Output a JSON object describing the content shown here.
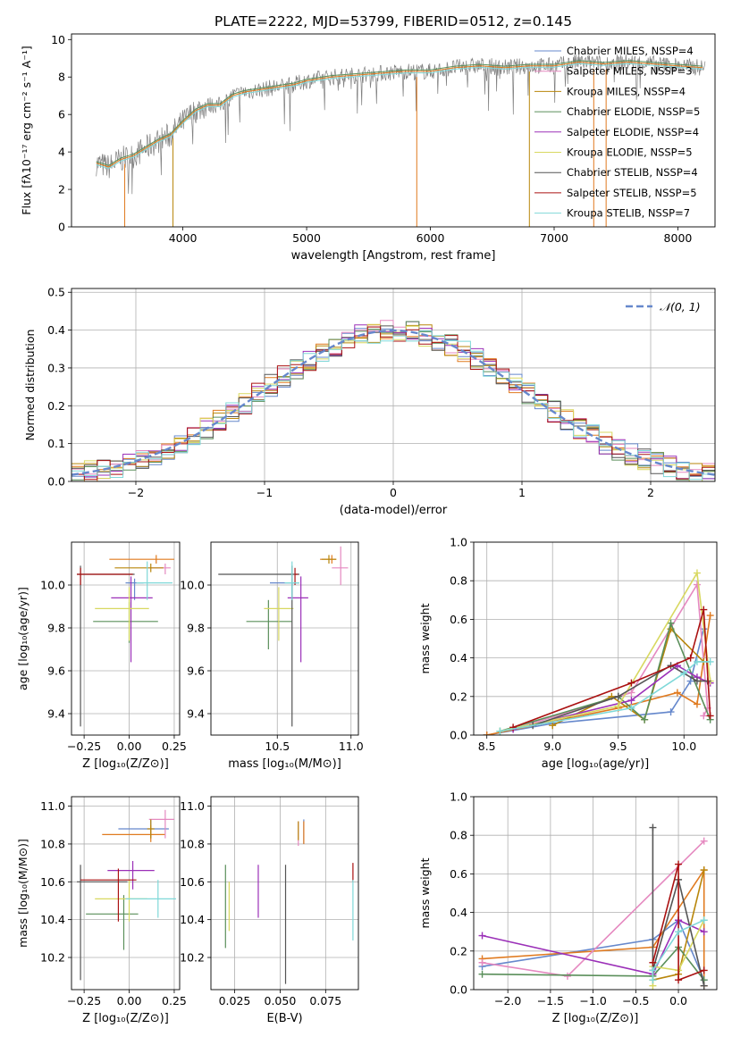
{
  "title": "PLATE=2222, MJD=53799, FIBERID=0512, z=0.145",
  "colors": [
    "#6688cc",
    "#e07a1f",
    "#e589c0",
    "#b8860b",
    "#5a8f5a",
    "#9b30b8",
    "#d8d860",
    "#555555",
    "#aa1111",
    "#7fd8d8"
  ],
  "chart_data": [
    {
      "id": "spectrum",
      "type": "line",
      "xlabel": "wavelength [Angstrom, rest frame]",
      "ylabel": "Flux [fλ10⁻¹⁷ erg cm⁻² s⁻¹ A⁻¹]",
      "xlim": [
        3100,
        8300
      ],
      "ylim": [
        0,
        10.3
      ],
      "xticks": [
        "4000",
        "5000",
        "6000",
        "7000",
        "8000"
      ],
      "yticks": [
        "0",
        "2",
        "4",
        "6",
        "8",
        "10"
      ],
      "legend": [
        "Chabrier MILES, N_SSP=4",
        "Salpeter MILES, N_SSP=3",
        "Kroupa MILES, N_SSP=4",
        "Chabrier ELODIE, N_SSP=5",
        "Salpeter ELODIE, N_SSP=4",
        "Kroupa ELODIE, N_SSP=5",
        "Chabrier STELIB, N_SSP=4",
        "Salpeter STELIB, N_SSP=5",
        "Kroupa STELIB, N_SSP=7"
      ],
      "legend_colors": [
        "#6688cc",
        "#e589c0",
        "#b8860b",
        "#5a8f5a",
        "#9b30b8",
        "#d8d860",
        "#555555",
        "#aa1111",
        "#7fd8d8"
      ],
      "legend_placement": "upper right",
      "continuum": {
        "x": [
          3300,
          3400,
          3500,
          3600,
          3700,
          3800,
          3900,
          4000,
          4100,
          4200,
          4300,
          4400,
          4500,
          4600,
          4700,
          4800,
          4900,
          5000,
          5200,
          5400,
          5600,
          5800,
          6000,
          6200,
          6400,
          6600,
          6800,
          7000,
          7200,
          7400,
          7600,
          7800,
          8000,
          8200
        ],
        "y": [
          3.4,
          3.2,
          3.6,
          3.8,
          4.2,
          4.6,
          4.9,
          5.6,
          6.2,
          6.5,
          6.5,
          7.0,
          7.2,
          7.3,
          7.4,
          7.5,
          7.6,
          7.8,
          8.0,
          8.1,
          8.2,
          8.3,
          8.3,
          8.5,
          8.6,
          8.5,
          8.6,
          8.6,
          8.8,
          8.7,
          8.8,
          8.7,
          8.6,
          8.5
        ]
      },
      "grid": false
    },
    {
      "id": "residuals",
      "type": "histogram",
      "xlabel": "(data-model)/error",
      "ylabel": "Normed distribution",
      "xlim": [
        -2.5,
        2.5
      ],
      "ylim": [
        0,
        0.51
      ],
      "xticks": [
        "−2",
        "−1",
        "0",
        "1",
        "2"
      ],
      "yticks": [
        "0.0",
        "0.1",
        "0.2",
        "0.3",
        "0.4",
        "0.5"
      ],
      "bin_width": 0.1,
      "legend": "𝒩(0, 1)",
      "legend_placement": "upper right",
      "curve": "normal pdf, mean 0, sigma 1",
      "grid": true
    },
    {
      "id": "age-vs-Z",
      "type": "errorbar",
      "xlabel": "Z [log₁₀(Z/Z⊙)]",
      "ylabel": "age  [log₁₀(age/yr)]",
      "xlim": [
        -0.32,
        0.28
      ],
      "ylim": [
        9.3,
        10.2
      ],
      "xticks": [
        "−0.25",
        "0.00",
        "0.25"
      ],
      "yticks": [
        "9.4",
        "9.6",
        "9.8",
        "10.0"
      ],
      "points": [
        {
          "x": 0.03,
          "y": 10.01,
          "xerr": [
            0.05,
            0.05
          ],
          "yerr": [
            0.08,
            0.02
          ],
          "c": 0
        },
        {
          "x": 0.15,
          "y": 10.12,
          "xerr": [
            0.26,
            0.1
          ],
          "yerr": [
            0.02,
            0.02
          ],
          "c": 1
        },
        {
          "x": 0.2,
          "y": 10.08,
          "xerr": [
            0.09,
            0.03
          ],
          "yerr": [
            0.03,
            0.02
          ],
          "c": 2
        },
        {
          "x": 0.12,
          "y": 10.08,
          "xerr": [
            0.2,
            0.07
          ],
          "yerr": [
            0.02,
            0.02
          ],
          "c": 3
        },
        {
          "x": 0.0,
          "y": 9.83,
          "xerr": [
            0.2,
            0.16
          ],
          "yerr": [
            0.1,
            0.09
          ],
          "c": 4
        },
        {
          "x": 0.01,
          "y": 9.94,
          "xerr": [
            0.11,
            0.12
          ],
          "yerr": [
            0.3,
            0.1
          ],
          "c": 5
        },
        {
          "x": 0.0,
          "y": 9.89,
          "xerr": [
            0.19,
            0.11
          ],
          "yerr": [
            0.15,
            0.1
          ],
          "c": 6
        },
        {
          "x": -0.27,
          "y": 10.05,
          "xerr": [
            0.02,
            0.3
          ],
          "yerr": [
            0.71,
            0.04
          ],
          "c": 7
        },
        {
          "x": -0.27,
          "y": 10.05,
          "xerr": [
            0.02,
            0.29
          ],
          "yerr": [
            0.05,
            0.03
          ],
          "c": 8
        },
        {
          "x": 0.1,
          "y": 10.01,
          "xerr": [
            0.06,
            0.14
          ],
          "yerr": [
            0.08,
            0.1
          ],
          "c": 9
        }
      ],
      "grid": true
    },
    {
      "id": "age-vs-mass",
      "type": "errorbar",
      "xlabel": "mass [log₁₀(M/M⊙)]",
      "ylabel": "",
      "xlim": [
        10.05,
        11.05
      ],
      "ylim": [
        9.3,
        10.2
      ],
      "xticks": [
        "10.5",
        "11.0"
      ],
      "yticks": [
        "9.4",
        "9.6",
        "9.8",
        "10.0"
      ],
      "points": [
        {
          "x": 10.6,
          "y": 10.01,
          "xerr": [
            0.15,
            0.05
          ],
          "yerr": [
            0.08,
            0.02
          ],
          "c": 0
        },
        {
          "x": 10.87,
          "y": 10.12,
          "xerr": [
            0.08,
            0.03
          ],
          "yerr": [
            0.02,
            0.02
          ],
          "c": 1
        },
        {
          "x": 10.93,
          "y": 10.08,
          "xerr": [
            0.06,
            0.05
          ],
          "yerr": [
            0.08,
            0.1
          ],
          "c": 2
        },
        {
          "x": 10.85,
          "y": 10.12,
          "xerr": [
            0.05,
            0.05
          ],
          "yerr": [
            0.02,
            0.02
          ],
          "c": 3
        },
        {
          "x": 10.44,
          "y": 9.83,
          "xerr": [
            0.15,
            0.16
          ],
          "yerr": [
            0.13,
            0.1
          ],
          "c": 4
        },
        {
          "x": 10.66,
          "y": 9.94,
          "xerr": [
            0.09,
            0.05
          ],
          "yerr": [
            0.3,
            0.1
          ],
          "c": 5
        },
        {
          "x": 10.51,
          "y": 9.89,
          "xerr": [
            0.1,
            0.1
          ],
          "yerr": [
            0.15,
            0.1
          ],
          "c": 6
        },
        {
          "x": 10.6,
          "y": 10.05,
          "xerr": [
            0.5,
            0.05
          ],
          "yerr": [
            0.71,
            0.04
          ],
          "c": 7
        },
        {
          "x": 10.62,
          "y": 10.05,
          "xerr": [
            0.0,
            0.02
          ],
          "yerr": [
            0.05,
            0.03
          ],
          "c": 8
        },
        {
          "x": 10.6,
          "y": 10.01,
          "xerr": [
            0.05,
            0.05
          ],
          "yerr": [
            0.08,
            0.1
          ],
          "c": 9
        }
      ],
      "grid": true
    },
    {
      "id": "weight-vs-age",
      "type": "line",
      "xlabel": "age  [log₁₀(age/yr)]",
      "ylabel": "mass weight",
      "xlim": [
        8.4,
        10.25
      ],
      "ylim": [
        0,
        1
      ],
      "xticks": [
        "8.5",
        "9.0",
        "9.5",
        "10.0"
      ],
      "yticks": [
        "0.0",
        "0.2",
        "0.4",
        "0.6",
        "0.8",
        "1.0"
      ],
      "series": [
        {
          "c": 0,
          "x": [
            8.5,
            9.0,
            9.9,
            10.05,
            10.15
          ],
          "y": [
            0.0,
            0.06,
            0.12,
            0.28,
            0.55
          ]
        },
        {
          "c": 1,
          "x": [
            8.5,
            9.5,
            9.95,
            10.1,
            10.2
          ],
          "y": [
            0.0,
            0.14,
            0.22,
            0.16,
            0.62
          ]
        },
        {
          "c": 2,
          "x": [
            8.7,
            9.6,
            10.1,
            10.18,
            10.15
          ],
          "y": [
            0.03,
            0.22,
            0.78,
            0.14,
            0.1
          ]
        },
        {
          "c": 3,
          "x": [
            9.0,
            9.45,
            9.7,
            9.9,
            10.15
          ],
          "y": [
            0.05,
            0.2,
            0.08,
            0.55,
            0.38
          ]
        },
        {
          "c": 4,
          "x": [
            8.6,
            9.5,
            9.7,
            9.9,
            10.2
          ],
          "y": [
            0.02,
            0.2,
            0.08,
            0.58,
            0.08
          ]
        },
        {
          "c": 5,
          "x": [
            8.7,
            9.6,
            9.95,
            10.1,
            10.2
          ],
          "y": [
            0.03,
            0.18,
            0.36,
            0.3,
            0.27
          ]
        },
        {
          "c": 6,
          "x": [
            8.6,
            9.5,
            10.1,
            10.2
          ],
          "y": [
            0.02,
            0.15,
            0.84,
            0.28
          ]
        },
        {
          "c": 7,
          "x": [
            8.85,
            9.5,
            9.9,
            10.1,
            10.18
          ],
          "y": [
            0.05,
            0.2,
            0.36,
            0.28,
            0.28
          ]
        },
        {
          "c": 8,
          "x": [
            8.7,
            9.6,
            10.05,
            10.15,
            10.2
          ],
          "y": [
            0.04,
            0.27,
            0.4,
            0.65,
            0.1
          ]
        },
        {
          "c": 9,
          "x": [
            8.6,
            9.6,
            10.0,
            10.1,
            10.2
          ],
          "y": [
            0.02,
            0.14,
            0.32,
            0.38,
            0.38
          ]
        }
      ],
      "grid": true
    },
    {
      "id": "mass-vs-Z",
      "type": "errorbar",
      "xlabel": "Z [log₁₀(Z/Z⊙)]",
      "ylabel": "mass [log₁₀(M/M⊙)]",
      "xlim": [
        -0.32,
        0.28
      ],
      "ylim": [
        10.03,
        11.05
      ],
      "xticks": [
        "−0.25",
        "0.00",
        "0.25"
      ],
      "yticks": [
        "10.2",
        "10.4",
        "10.6",
        "10.8",
        "11.0"
      ],
      "points": [
        {
          "x": 0.12,
          "y": 10.88,
          "xerr": [
            0.18,
            0.1
          ],
          "yerr": [
            0.05,
            0.05
          ],
          "c": 0
        },
        {
          "x": 0.12,
          "y": 10.85,
          "xerr": [
            0.27,
            0.08
          ],
          "yerr": [
            0.04,
            0.05
          ],
          "c": 1
        },
        {
          "x": 0.2,
          "y": 10.93,
          "xerr": [
            0.09,
            0.05
          ],
          "yerr": [
            0.1,
            0.05
          ],
          "c": 2
        },
        {
          "x": 0.12,
          "y": 10.88,
          "xerr": [
            0.02,
            0.02
          ],
          "yerr": [
            0.05,
            0.05
          ],
          "c": 3
        },
        {
          "x": -0.03,
          "y": 10.43,
          "xerr": [
            0.21,
            0.08
          ],
          "yerr": [
            0.19,
            0.1
          ],
          "c": 4
        },
        {
          "x": 0.02,
          "y": 10.66,
          "xerr": [
            0.14,
            0.12
          ],
          "yerr": [
            0.1,
            0.05
          ],
          "c": 5
        },
        {
          "x": 0.0,
          "y": 10.51,
          "xerr": [
            0.19,
            0.1
          ],
          "yerr": [
            0.12,
            0.1
          ],
          "c": 6
        },
        {
          "x": -0.27,
          "y": 10.6,
          "xerr": [
            0.02,
            0.26
          ],
          "yerr": [
            0.52,
            0.09
          ],
          "c": 7
        },
        {
          "x": -0.06,
          "y": 10.61,
          "xerr": [
            0.21,
            0.1
          ],
          "yerr": [
            0.22,
            0.06
          ],
          "c": 8
        },
        {
          "x": 0.16,
          "y": 10.51,
          "xerr": [
            0.18,
            0.1
          ],
          "yerr": [
            0.1,
            0.1
          ],
          "c": 9
        }
      ],
      "grid": true
    },
    {
      "id": "mass-vs-EBV",
      "type": "errorbar",
      "xlabel": "E(B-V)",
      "ylabel": "",
      "xlim": [
        0.012,
        0.093
      ],
      "ylim": [
        10.03,
        11.05
      ],
      "xticks": [
        "0.025",
        "0.050",
        "0.075"
      ],
      "yticks": [
        "10.2",
        "10.4",
        "10.6",
        "10.8",
        "11.0"
      ],
      "points": [
        {
          "x": 0.063,
          "y": 10.85,
          "xerr": [
            0,
            0
          ],
          "yerr": [
            0.05,
            0.08
          ],
          "c": 0
        },
        {
          "x": 0.063,
          "y": 10.87,
          "xerr": [
            0,
            0
          ],
          "yerr": [
            0.07,
            0.05
          ],
          "c": 1
        },
        {
          "x": 0.06,
          "y": 10.87,
          "xerr": [
            0,
            0
          ],
          "yerr": [
            0.08,
            0.05
          ],
          "c": 2
        },
        {
          "x": 0.06,
          "y": 10.87,
          "xerr": [
            0,
            0
          ],
          "yerr": [
            0.05,
            0.05
          ],
          "c": 3
        },
        {
          "x": 0.02,
          "y": 10.47,
          "xerr": [
            0,
            0
          ],
          "yerr": [
            0.22,
            0.22
          ],
          "c": 4
        },
        {
          "x": 0.038,
          "y": 10.55,
          "xerr": [
            0,
            0
          ],
          "yerr": [
            0.14,
            0.14
          ],
          "c": 5
        },
        {
          "x": 0.022,
          "y": 10.46,
          "xerr": [
            0,
            0
          ],
          "yerr": [
            0.12,
            0.14
          ],
          "c": 6
        },
        {
          "x": 0.053,
          "y": 10.36,
          "xerr": [
            0,
            0
          ],
          "yerr": [
            0.3,
            0.33
          ],
          "c": 7
        },
        {
          "x": 0.09,
          "y": 10.65,
          "xerr": [
            0,
            0
          ],
          "yerr": [
            0.05,
            0.05
          ],
          "c": 8
        },
        {
          "x": 0.09,
          "y": 10.45,
          "xerr": [
            0,
            0
          ],
          "yerr": [
            0.16,
            0.16
          ],
          "c": 9
        }
      ],
      "grid": true
    },
    {
      "id": "weight-vs-Z",
      "type": "line",
      "xlabel": "Z [log₁₀(Z/Z⊙)]",
      "ylabel": "mass weight",
      "xlim": [
        -2.4,
        0.45
      ],
      "ylim": [
        0,
        1
      ],
      "xticks": [
        "−2.0",
        "−1.5",
        "−1.0",
        "−0.5",
        "0.0"
      ],
      "yticks": [
        "0.0",
        "0.2",
        "0.4",
        "0.6",
        "0.8",
        "1.0"
      ],
      "series": [
        {
          "c": 0,
          "x": [
            -2.3,
            -0.3,
            0.0,
            0.3
          ],
          "y": [
            0.12,
            0.26,
            0.36,
            0.05
          ]
        },
        {
          "c": 1,
          "x": [
            -2.3,
            -0.3,
            0.3,
            0.3
          ],
          "y": [
            0.16,
            0.22,
            0.62,
            0.02
          ]
        },
        {
          "c": 2,
          "x": [
            -2.3,
            -1.3,
            0.3
          ],
          "y": [
            0.14,
            0.07,
            0.77
          ]
        },
        {
          "c": 3,
          "x": [
            -0.3,
            0.0,
            0.3
          ],
          "y": [
            0.05,
            0.08,
            0.62
          ]
        },
        {
          "c": 4,
          "x": [
            -2.3,
            -0.3,
            0.0,
            0.3
          ],
          "y": [
            0.08,
            0.07,
            0.22,
            0.05
          ]
        },
        {
          "c": 5,
          "x": [
            -2.3,
            -0.3,
            0.0,
            0.3
          ],
          "y": [
            0.28,
            0.08,
            0.36,
            0.3
          ]
        },
        {
          "c": 6,
          "x": [
            -0.3,
            -0.3,
            0.0,
            0.3
          ],
          "y": [
            0.02,
            0.12,
            0.1,
            0.36
          ]
        },
        {
          "c": 7,
          "x": [
            -0.3,
            -0.3,
            0.0,
            0.3
          ],
          "y": [
            0.84,
            0.1,
            0.57,
            0.02
          ]
        },
        {
          "c": 8,
          "x": [
            -0.3,
            0.0,
            0.0,
            0.3
          ],
          "y": [
            0.14,
            0.65,
            0.05,
            0.1
          ]
        },
        {
          "c": 9,
          "x": [
            -0.3,
            -0.3,
            0.0,
            0.3
          ],
          "y": [
            0.05,
            0.1,
            0.3,
            0.36
          ]
        }
      ],
      "grid": true
    }
  ]
}
